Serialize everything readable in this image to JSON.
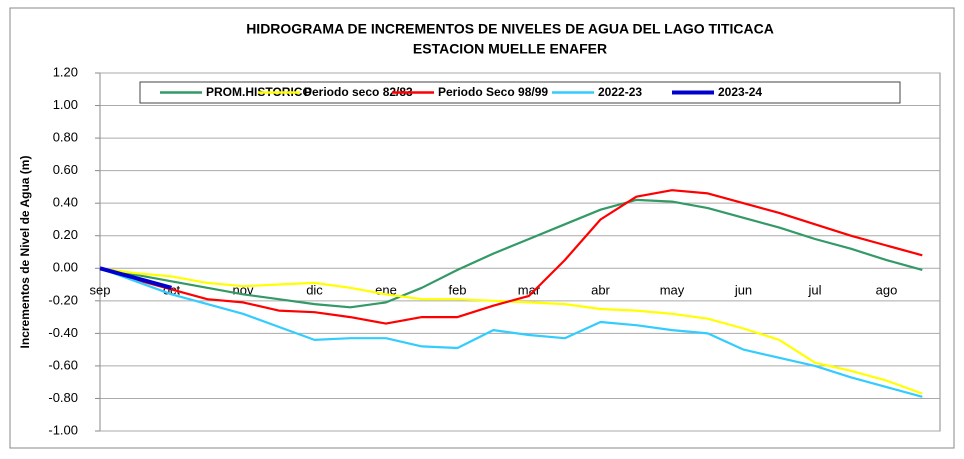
{
  "chart_data": {
    "type": "line",
    "title": "HIDROGRAMA DE INCREMENTOS DE NIVELES DE AGUA DEL  LAGO TITICACA",
    "subtitle": "ESTACION MUELLE ENAFER",
    "y_label": "Incrementos de Nivel de Agua (m)",
    "categories": [
      "sep",
      null,
      "oct",
      null,
      "nov",
      null,
      "dic",
      null,
      "ene",
      null,
      "feb",
      null,
      "mar",
      null,
      "abr",
      null,
      "may",
      null,
      "jun",
      null,
      "jul",
      null,
      "ago",
      null
    ],
    "ylim": [
      -1,
      1.2
    ],
    "yticks": [
      {
        "value": -1,
        "label": "-1.00"
      },
      {
        "value": -0.8,
        "label": "-0.80"
      },
      {
        "value": -0.6,
        "label": "-0.60"
      },
      {
        "value": -0.4,
        "label": "-0.40"
      },
      {
        "value": -0.2,
        "label": "-0.20"
      },
      {
        "value": 0,
        "label": "0.00"
      },
      {
        "value": 0.2,
        "label": "0.20"
      },
      {
        "value": 0.4,
        "label": "0.40"
      },
      {
        "value": 0.6,
        "label": "0.60"
      },
      {
        "value": 0.8,
        "label": "0.80"
      },
      {
        "value": 1,
        "label": "1.00"
      },
      {
        "value": 1.2,
        "label": "1.20"
      }
    ],
    "grid": true,
    "series": [
      {
        "name": "PROM.HISTORICO",
        "color": "#339966",
        "values": [
          0,
          -0.04,
          -0.08,
          -0.12,
          -0.16,
          -0.19,
          -0.22,
          -0.24,
          -0.21,
          -0.12,
          -0.01,
          0.09,
          0.18,
          0.27,
          0.36,
          0.42,
          0.41,
          0.37,
          0.31,
          0.25,
          0.18,
          0.12,
          0.05,
          -0.01
        ]
      },
      {
        "name": "Periodo seco 82/83",
        "color": "#ffff00",
        "values": [
          0,
          -0.03,
          -0.05,
          -0.09,
          -0.11,
          -0.1,
          -0.09,
          -0.12,
          -0.16,
          -0.19,
          -0.19,
          -0.2,
          -0.21,
          -0.22,
          -0.25,
          -0.26,
          -0.28,
          -0.31,
          -0.37,
          -0.44,
          -0.58,
          -0.63,
          -0.69,
          -0.77
        ]
      },
      {
        "name": "Periodo Seco 98/99",
        "color": "#ff0000",
        "values": [
          0,
          -0.07,
          -0.13,
          -0.19,
          -0.21,
          -0.26,
          -0.27,
          -0.3,
          -0.34,
          -0.3,
          -0.3,
          -0.23,
          -0.17,
          0.05,
          0.3,
          0.44,
          0.48,
          0.46,
          0.4,
          0.34,
          0.27,
          0.2,
          0.14,
          0.08
        ]
      },
      {
        "name": "2022-23",
        "color": "#33ccff",
        "values": [
          0,
          -0.08,
          -0.16,
          -0.22,
          -0.28,
          -0.36,
          -0.44,
          -0.43,
          -0.43,
          -0.48,
          -0.49,
          -0.38,
          -0.41,
          -0.43,
          -0.33,
          -0.35,
          -0.38,
          -0.4,
          -0.5,
          -0.55,
          -0.6,
          -0.67,
          -0.73,
          -0.79
        ]
      },
      {
        "name": "2023-24",
        "color": "#0000cc",
        "values": [
          0,
          -0.06,
          -0.12,
          null,
          null,
          null,
          null,
          null,
          null,
          null,
          null,
          null,
          null,
          null,
          null,
          null,
          null,
          null,
          null,
          null,
          null,
          null,
          null,
          null
        ]
      }
    ]
  }
}
